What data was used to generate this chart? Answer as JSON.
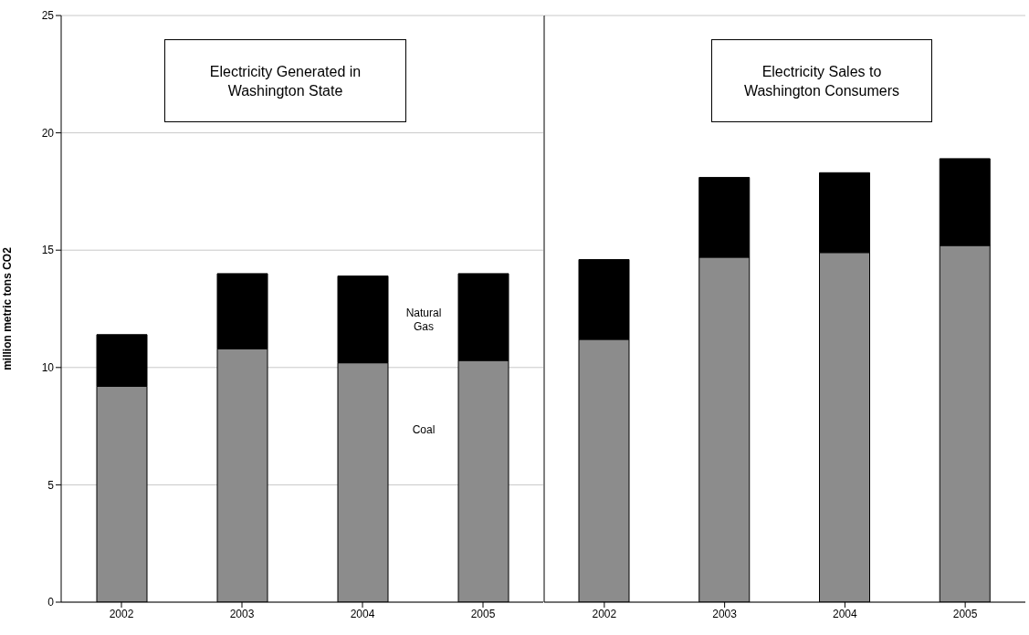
{
  "chart_data": [
    {
      "type": "bar",
      "stacked": true,
      "ylabel": "million metric tons CO2",
      "categories": [
        "2002",
        "2003",
        "2004",
        "2005"
      ],
      "annotations": [
        "Electricity Generated in Washington State"
      ],
      "ylim": [
        0,
        25
      ],
      "yticks": [
        0,
        5,
        10,
        15,
        20,
        25
      ],
      "grid": "y",
      "legend": false,
      "series": [
        {
          "name": "Coal",
          "color": "#8c8c8c",
          "values": [
            9.2,
            10.8,
            10.2,
            10.3
          ]
        },
        {
          "name": "Natural Gas",
          "color": "#000000",
          "values": [
            2.2,
            3.2,
            3.7,
            3.7
          ]
        }
      ]
    },
    {
      "type": "bar",
      "stacked": true,
      "categories": [
        "2002",
        "2003",
        "2004",
        "2005"
      ],
      "annotations": [
        "Electricity Sales to Washington Consumers"
      ],
      "ylim": [
        0,
        25
      ],
      "yticks": [
        0,
        5,
        10,
        15,
        20,
        25
      ],
      "grid": "y",
      "legend": false,
      "tick_labels": "x",
      "series": [
        {
          "color": "#8c8c8c",
          "values": [
            11.2,
            14.7,
            14.9,
            15.2
          ]
        },
        {
          "color": "#000000",
          "values": [
            3.4,
            3.4,
            3.4,
            3.7
          ]
        }
      ]
    }
  ]
}
